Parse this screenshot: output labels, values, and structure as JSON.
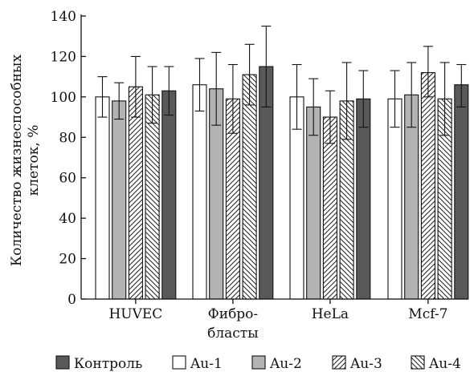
{
  "chart_data": {
    "type": "bar",
    "title": "",
    "ylabel_lines": [
      "Количество жизнеспособных",
      "клеток, %"
    ],
    "categories": [
      {
        "lines": [
          "HUVEC"
        ]
      },
      {
        "lines": [
          "Фибро-",
          "бласты"
        ]
      },
      {
        "lines": [
          "HeLa"
        ]
      },
      {
        "lines": [
          "Mcf-7"
        ]
      }
    ],
    "ylim": [
      0,
      140
    ],
    "yticks": [
      "0",
      "20",
      "40",
      "60",
      "80",
      "100",
      "120",
      "140"
    ],
    "grid": false,
    "legend_position": "bottom",
    "series": [
      {
        "name": "Au-1",
        "fill": "#ffffff",
        "pattern": "none",
        "values": [
          100,
          106,
          100,
          99
        ],
        "err_low": [
          90,
          93,
          84,
          85
        ],
        "err_high": [
          110,
          119,
          116,
          113
        ]
      },
      {
        "name": "Au-2",
        "fill": "#b3b3b3",
        "pattern": "none",
        "values": [
          98,
          104,
          95,
          101
        ],
        "err_low": [
          89,
          86,
          81,
          85
        ],
        "err_high": [
          107,
          122,
          109,
          117
        ]
      },
      {
        "name": "Au-3",
        "fill": "#ffffff",
        "pattern": "forward-hatch",
        "values": [
          105,
          99,
          90,
          112
        ],
        "err_low": [
          90,
          82,
          77,
          100
        ],
        "err_high": [
          120,
          116,
          103,
          125
        ]
      },
      {
        "name": "Au-4",
        "fill": "#ffffff",
        "pattern": "back-hatch",
        "values": [
          101,
          111,
          98,
          99
        ],
        "err_low": [
          87,
          96,
          79,
          81
        ],
        "err_high": [
          115,
          126,
          117,
          117
        ]
      },
      {
        "name": "Контроль",
        "fill": "#595959",
        "pattern": "none",
        "values": [
          103,
          115,
          99,
          106
        ],
        "err_low": [
          91,
          95,
          85,
          95
        ],
        "err_high": [
          115,
          135,
          113,
          116
        ]
      }
    ],
    "legend_order": [
      "Контроль",
      "Au-1",
      "Au-2",
      "Au-3",
      "Au-4"
    ]
  }
}
